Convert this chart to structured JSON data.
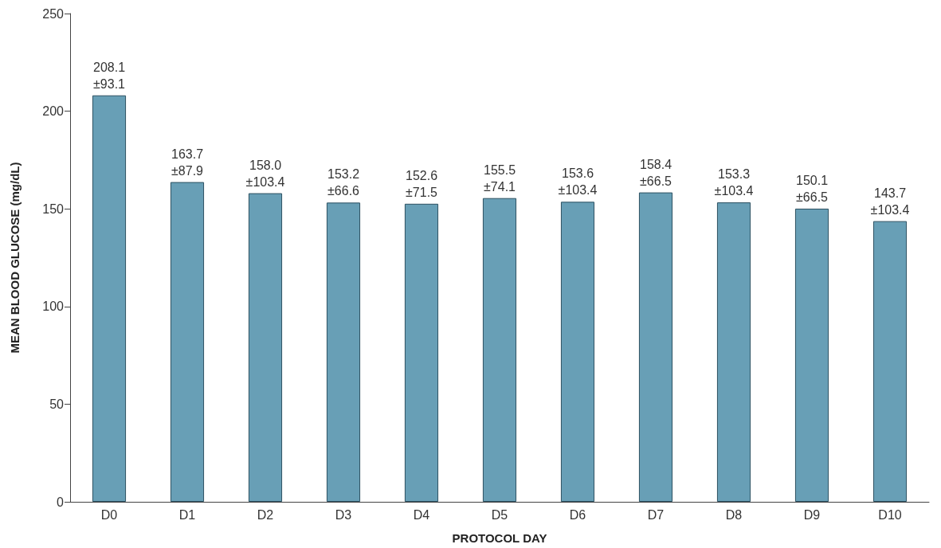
{
  "chart_data": {
    "type": "bar",
    "xlabel": "PROTOCOL DAY",
    "ylabel": "MEAN BLOOD GLUCOSE (mg/dL)",
    "categories": [
      "D0",
      "D1",
      "D2",
      "D3",
      "D4",
      "D5",
      "D6",
      "D7",
      "D8",
      "D9",
      "D10"
    ],
    "values": [
      208.1,
      163.7,
      158.0,
      153.2,
      152.6,
      155.5,
      153.6,
      158.4,
      153.3,
      150.1,
      143.7
    ],
    "value_labels": [
      "208.1\n±93.1",
      "163.7\n±87.9",
      "158.0\n±103.4",
      "153.2\n±66.6",
      "152.6\n±71.5",
      "155.5\n±74.1",
      "153.6\n±103.4",
      "158.4\n±66.5",
      "153.3\n±103.4",
      "150.1\n±66.5",
      "143.7\n±103.4"
    ],
    "color": "#689fb6",
    "ylim": [
      0,
      250
    ],
    "yticks": [
      0,
      50,
      100,
      150,
      200,
      250
    ],
    "grid": false
  }
}
